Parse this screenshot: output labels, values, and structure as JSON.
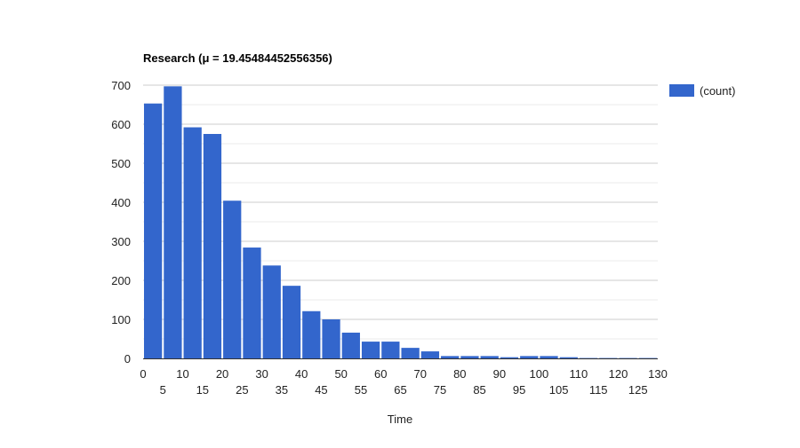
{
  "chart_data": {
    "type": "bar",
    "title": "Research (μ = 19.45484452556356)",
    "xlabel": "Time",
    "ylabel": "",
    "legend": {
      "entries": [
        "(count)"
      ],
      "position": "right-top"
    },
    "colors": {
      "bar": "#3366cc",
      "grid_major": "#cccccc",
      "grid_minor": "#ebebeb",
      "axis": "#333333"
    },
    "grid": true,
    "ylim": [
      0,
      700
    ],
    "yticks": [
      0,
      100,
      200,
      300,
      400,
      500,
      600,
      700
    ],
    "xlim": [
      0,
      130
    ],
    "xticks_top": [
      0,
      10,
      20,
      30,
      40,
      50,
      60,
      70,
      80,
      90,
      100,
      110,
      120,
      130
    ],
    "xticks_bottom": [
      5,
      15,
      25,
      35,
      45,
      55,
      65,
      75,
      85,
      95,
      105,
      115,
      125
    ],
    "bin_width": 5,
    "bins": [
      {
        "start": 0,
        "value": 653
      },
      {
        "start": 5,
        "value": 697
      },
      {
        "start": 10,
        "value": 592
      },
      {
        "start": 15,
        "value": 575
      },
      {
        "start": 20,
        "value": 404
      },
      {
        "start": 25,
        "value": 284
      },
      {
        "start": 30,
        "value": 238
      },
      {
        "start": 35,
        "value": 186
      },
      {
        "start": 40,
        "value": 121
      },
      {
        "start": 45,
        "value": 100
      },
      {
        "start": 50,
        "value": 66
      },
      {
        "start": 55,
        "value": 43
      },
      {
        "start": 60,
        "value": 43
      },
      {
        "start": 65,
        "value": 27
      },
      {
        "start": 70,
        "value": 18
      },
      {
        "start": 75,
        "value": 6
      },
      {
        "start": 80,
        "value": 6
      },
      {
        "start": 85,
        "value": 6
      },
      {
        "start": 90,
        "value": 3
      },
      {
        "start": 95,
        "value": 6
      },
      {
        "start": 100,
        "value": 6
      },
      {
        "start": 105,
        "value": 3
      },
      {
        "start": 110,
        "value": 1
      },
      {
        "start": 115,
        "value": 1
      },
      {
        "start": 120,
        "value": 1
      },
      {
        "start": 125,
        "value": 1
      }
    ]
  }
}
